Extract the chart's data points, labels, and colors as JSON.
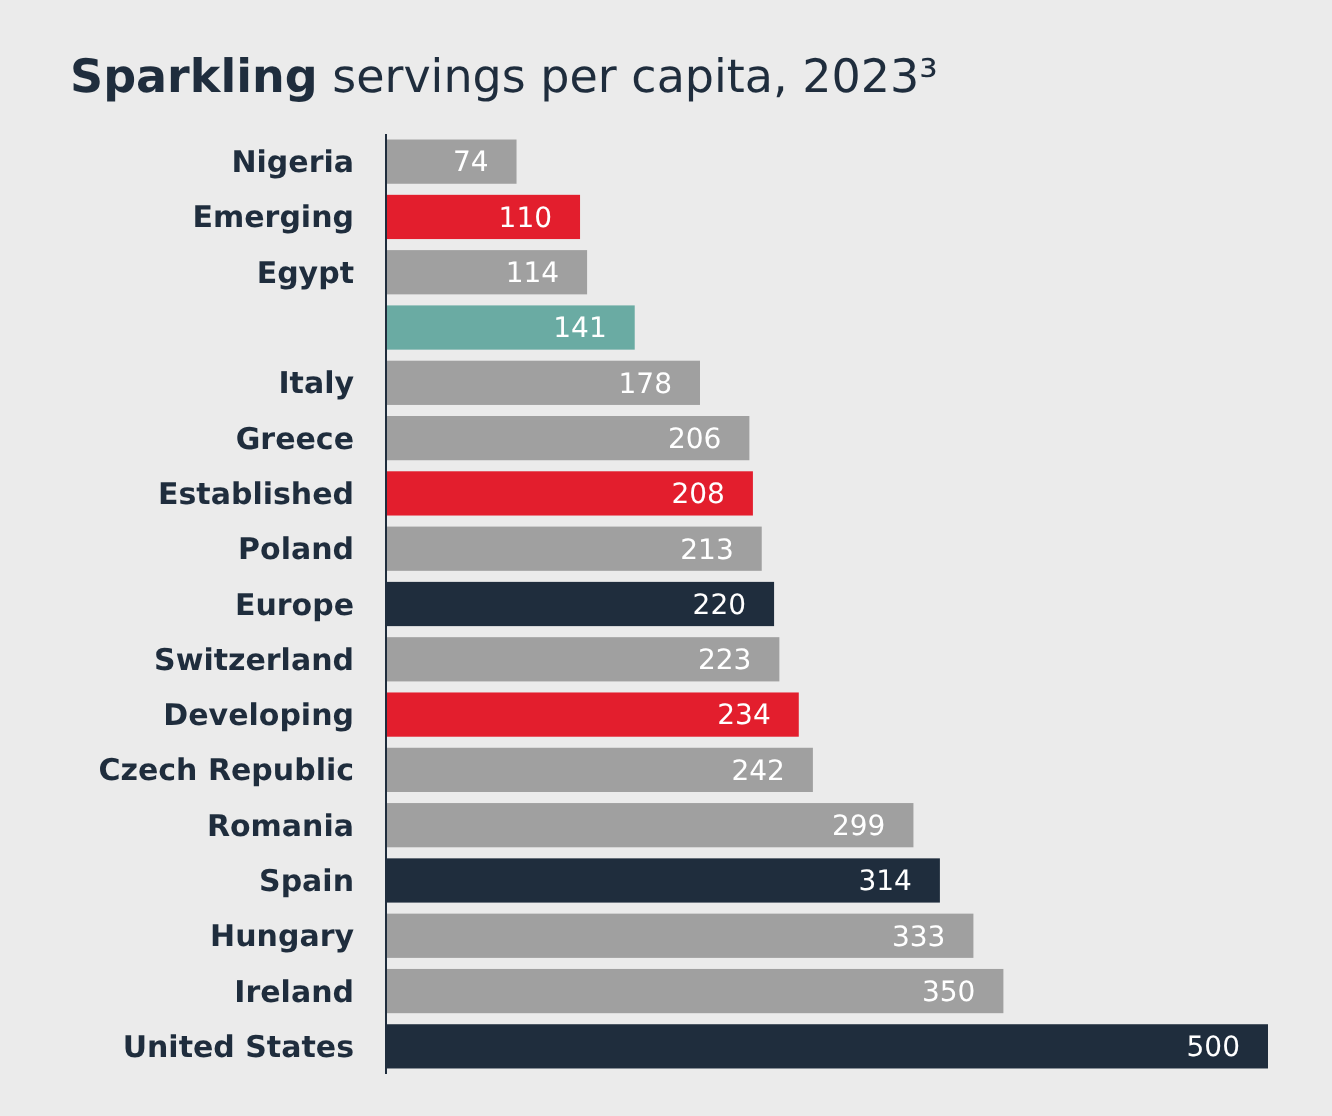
{
  "chart_data": {
    "type": "bar",
    "orientation": "horizontal",
    "title": "Sparkling servings per capita, 2023³",
    "data_labels": true,
    "categories": [
      "Nigeria",
      "Emerging",
      "Egypt",
      null,
      "Italy",
      "Greece",
      "Established",
      "Poland",
      "Europe",
      "Switzerland",
      "Developing",
      "Czech Republic",
      "Romania",
      "Spain",
      "Hungary",
      "Ireland",
      "United States"
    ],
    "values": [
      74,
      110,
      114,
      141,
      178,
      206,
      208,
      213,
      220,
      223,
      234,
      242,
      299,
      314,
      333,
      350,
      500
    ],
    "colors": [
      "#a0a0a0",
      "#e31e2d",
      "#a0a0a0",
      "#6aaba3",
      "#a0a0a0",
      "#a0a0a0",
      "#e31e2d",
      "#a0a0a0",
      "#1f2d3d",
      "#a0a0a0",
      "#e31e2d",
      "#a0a0a0",
      "#a0a0a0",
      "#1f2d3d",
      "#a0a0a0",
      "#a0a0a0",
      "#1f2d3d"
    ]
  }
}
